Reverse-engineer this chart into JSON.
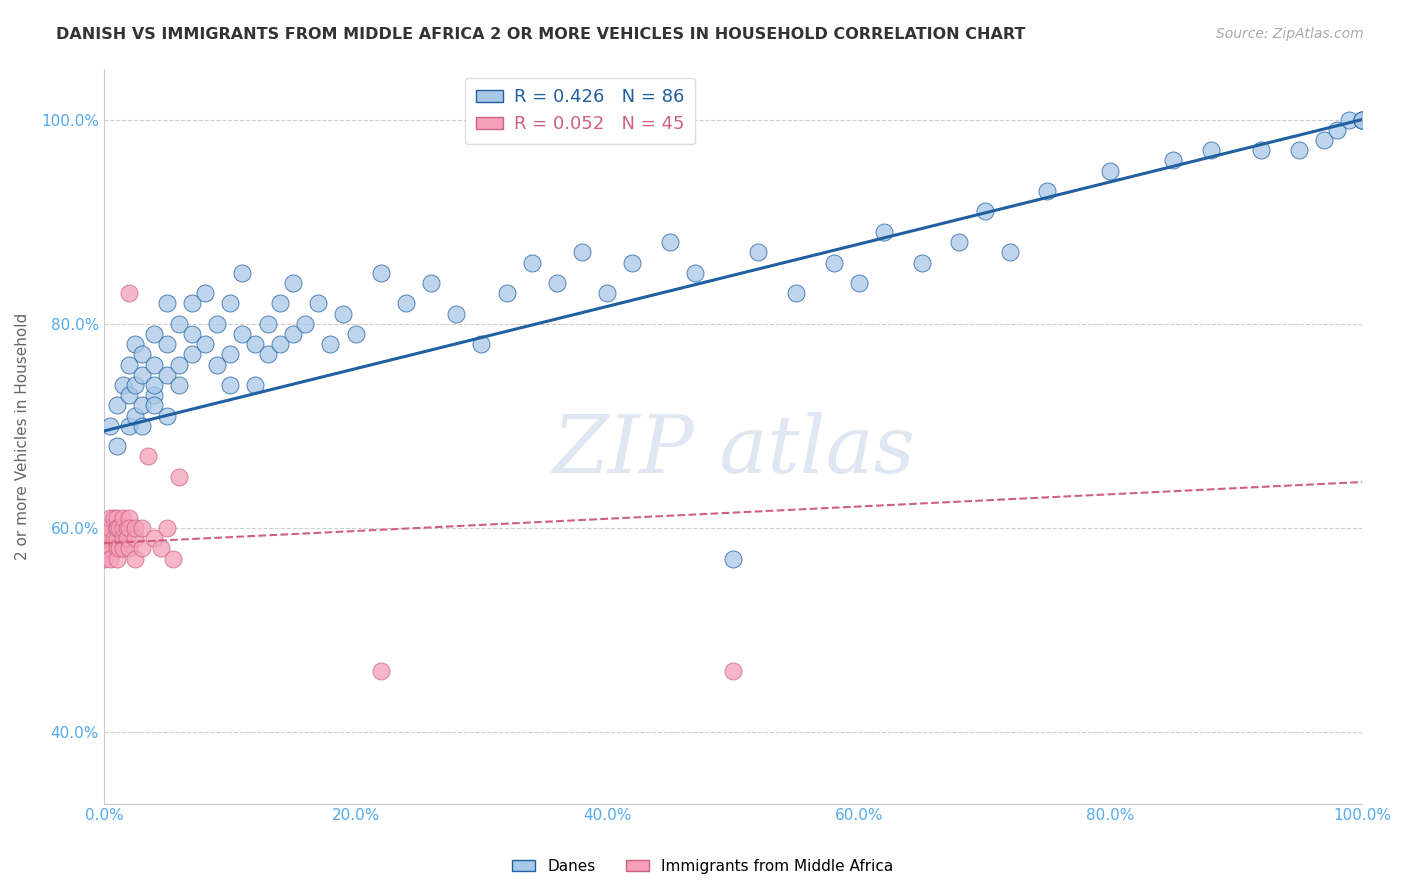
{
  "title": "DANISH VS IMMIGRANTS FROM MIDDLE AFRICA 2 OR MORE VEHICLES IN HOUSEHOLD CORRELATION CHART",
  "source": "Source: ZipAtlas.com",
  "ylabel": "2 or more Vehicles in Household",
  "r1": 0.426,
  "n1": 86,
  "r2": 0.052,
  "n2": 45,
  "color_blue": "#a8c8e8",
  "color_pink": "#f4a0b8",
  "line_blue": "#2060a0",
  "line_pink": "#d06080",
  "background_color": "#ffffff",
  "grid_color": "#cccccc",
  "title_color": "#333333",
  "watermark_color": "#c8d8ea",
  "tick_color": "#55aaee",
  "legend_label1": "Danes",
  "legend_label2": "Immigrants from Middle Africa",
  "danes_x": [
    0.005,
    0.01,
    0.01,
    0.015,
    0.02,
    0.02,
    0.02,
    0.025,
    0.025,
    0.025,
    0.03,
    0.03,
    0.03,
    0.03,
    0.04,
    0.04,
    0.04,
    0.04,
    0.04,
    0.05,
    0.05,
    0.05,
    0.05,
    0.06,
    0.06,
    0.06,
    0.07,
    0.07,
    0.07,
    0.08,
    0.08,
    0.09,
    0.09,
    0.1,
    0.1,
    0.1,
    0.11,
    0.11,
    0.12,
    0.12,
    0.13,
    0.13,
    0.14,
    0.14,
    0.15,
    0.15,
    0.16,
    0.17,
    0.18,
    0.19,
    0.2,
    0.22,
    0.24,
    0.26,
    0.28,
    0.3,
    0.32,
    0.34,
    0.36,
    0.38,
    0.4,
    0.42,
    0.45,
    0.47,
    0.5,
    0.52,
    0.55,
    0.58,
    0.6,
    0.62,
    0.65,
    0.68,
    0.7,
    0.72,
    0.75,
    0.8,
    0.85,
    0.88,
    0.92,
    0.95,
    0.97,
    0.98,
    0.99,
    1.0,
    1.0,
    1.0
  ],
  "danes_y": [
    0.7,
    0.72,
    0.68,
    0.74,
    0.7,
    0.73,
    0.76,
    0.71,
    0.74,
    0.78,
    0.72,
    0.75,
    0.7,
    0.77,
    0.73,
    0.76,
    0.72,
    0.79,
    0.74,
    0.75,
    0.78,
    0.71,
    0.82,
    0.76,
    0.8,
    0.74,
    0.77,
    0.82,
    0.79,
    0.78,
    0.83,
    0.76,
    0.8,
    0.77,
    0.74,
    0.82,
    0.79,
    0.85,
    0.78,
    0.74,
    0.8,
    0.77,
    0.82,
    0.78,
    0.84,
    0.79,
    0.8,
    0.82,
    0.78,
    0.81,
    0.79,
    0.85,
    0.82,
    0.84,
    0.81,
    0.78,
    0.83,
    0.86,
    0.84,
    0.87,
    0.83,
    0.86,
    0.88,
    0.85,
    0.57,
    0.87,
    0.83,
    0.86,
    0.84,
    0.89,
    0.86,
    0.88,
    0.91,
    0.87,
    0.93,
    0.95,
    0.96,
    0.97,
    0.97,
    0.97,
    0.98,
    0.99,
    1.0,
    1.0,
    1.0,
    1.0
  ],
  "immigrants_x": [
    0.0,
    0.0,
    0.0,
    0.0,
    0.0,
    0.0,
    0.0,
    0.005,
    0.005,
    0.005,
    0.005,
    0.005,
    0.008,
    0.008,
    0.01,
    0.01,
    0.01,
    0.01,
    0.01,
    0.01,
    0.012,
    0.012,
    0.015,
    0.015,
    0.015,
    0.015,
    0.018,
    0.018,
    0.02,
    0.02,
    0.02,
    0.02,
    0.025,
    0.025,
    0.025,
    0.03,
    0.03,
    0.035,
    0.04,
    0.045,
    0.05,
    0.055,
    0.06,
    0.22,
    0.5
  ],
  "immigrants_y": [
    0.58,
    0.59,
    0.6,
    0.58,
    0.6,
    0.57,
    0.59,
    0.59,
    0.6,
    0.58,
    0.61,
    0.57,
    0.59,
    0.61,
    0.6,
    0.59,
    0.58,
    0.61,
    0.6,
    0.57,
    0.6,
    0.58,
    0.59,
    0.6,
    0.61,
    0.58,
    0.6,
    0.59,
    0.83,
    0.61,
    0.6,
    0.58,
    0.59,
    0.6,
    0.57,
    0.6,
    0.58,
    0.67,
    0.59,
    0.58,
    0.6,
    0.57,
    0.65,
    0.46,
    0.46
  ],
  "xlim": [
    0,
    1.0
  ],
  "ylim": [
    0.33,
    1.05
  ],
  "x_ticks": [
    0.0,
    0.2,
    0.4,
    0.6,
    0.8,
    1.0
  ],
  "y_ticks": [
    0.4,
    0.6,
    0.8,
    1.0
  ]
}
